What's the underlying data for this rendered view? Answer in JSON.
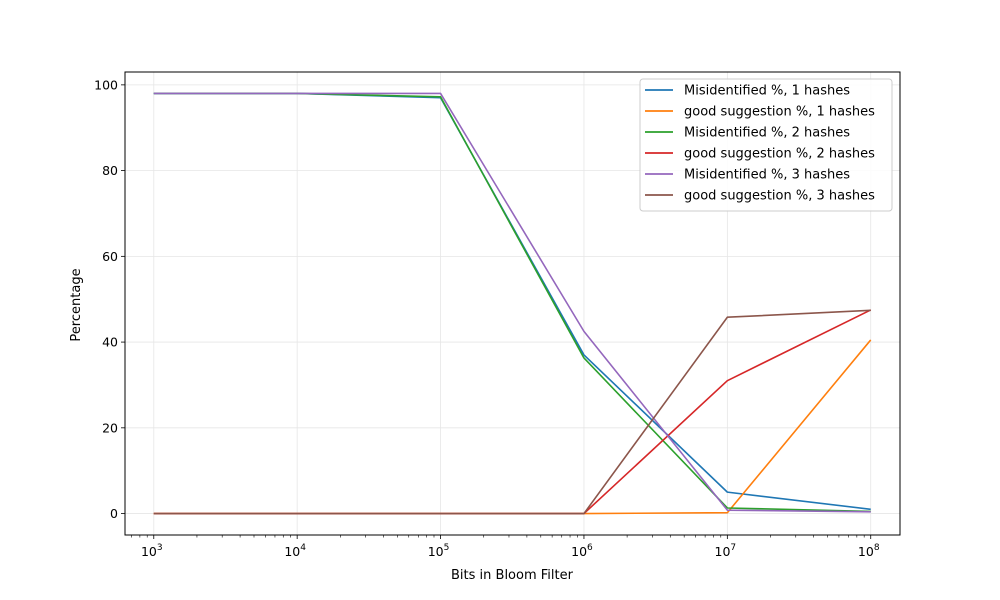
{
  "chart_data": {
    "type": "line",
    "xlabel": "Bits in Bloom Filter",
    "ylabel": "Percentage",
    "xscale": "log",
    "xlim": [
      630,
      160000000
    ],
    "ylim": [
      -5,
      103
    ],
    "grid": true,
    "legend_position": "top-right",
    "x": [
      1000,
      10000,
      100000,
      1000000,
      10000000,
      100000000
    ],
    "xticks": [
      {
        "value": 1000,
        "base": "10",
        "exp": "3"
      },
      {
        "value": 10000,
        "base": "10",
        "exp": "4"
      },
      {
        "value": 100000,
        "base": "10",
        "exp": "5"
      },
      {
        "value": 1000000,
        "base": "10",
        "exp": "6"
      },
      {
        "value": 10000000,
        "base": "10",
        "exp": "7"
      },
      {
        "value": 100000000,
        "base": "10",
        "exp": "8"
      }
    ],
    "yticks": [
      {
        "value": 0,
        "label": "0"
      },
      {
        "value": 20,
        "label": "20"
      },
      {
        "value": 40,
        "label": "40"
      },
      {
        "value": 60,
        "label": "60"
      },
      {
        "value": 80,
        "label": "80"
      },
      {
        "value": 100,
        "label": "100"
      }
    ],
    "series": [
      {
        "name": "Misidentified %, 1 hashes",
        "color": "#1f77b4",
        "values": [
          98,
          98,
          97,
          37,
          5,
          1
        ]
      },
      {
        "name": "good suggestion %, 1 hashes",
        "color": "#ff7f0e",
        "values": [
          0,
          0,
          0,
          0,
          0.2,
          40.5
        ]
      },
      {
        "name": "Misidentified %, 2 hashes",
        "color": "#2ca02c",
        "values": [
          98,
          98,
          97.2,
          36.3,
          1.3,
          0.5
        ]
      },
      {
        "name": "good suggestion %, 2 hashes",
        "color": "#d62728",
        "values": [
          0,
          0,
          0,
          0,
          31,
          47.5
        ]
      },
      {
        "name": "Misidentified %, 3 hashes",
        "color": "#9467bd",
        "values": [
          98,
          98,
          98,
          42.5,
          0.8,
          0.4
        ]
      },
      {
        "name": "good suggestion %, 3 hashes",
        "color": "#8c564b",
        "values": [
          0,
          0,
          0,
          0,
          45.8,
          47.4
        ]
      }
    ]
  }
}
